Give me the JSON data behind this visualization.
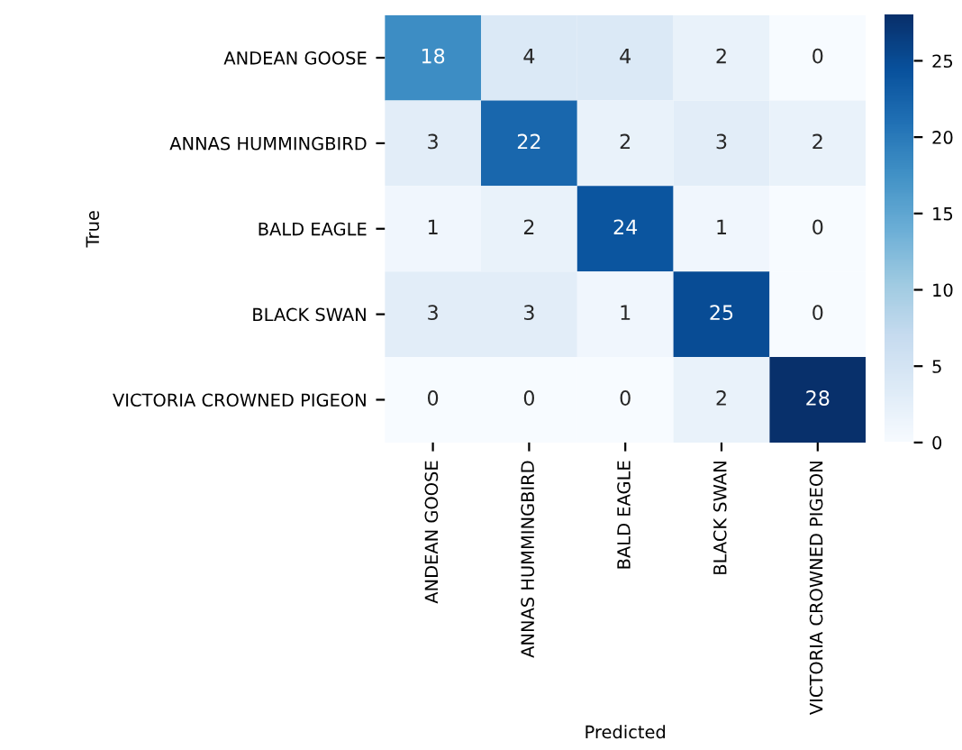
{
  "chart_data": {
    "type": "heatmap",
    "xlabel": "Predicted",
    "ylabel": "True",
    "categories": [
      "ANDEAN GOOSE",
      "ANNAS HUMMINGBIRD",
      "BALD EAGLE",
      "BLACK SWAN",
      "VICTORIA CROWNED PIGEON"
    ],
    "y_categories": [
      "ANDEAN GOOSE",
      "ANNAS HUMMINGBIRD",
      "BALD EAGLE",
      "BLACK SWAN",
      "VICTORIA CROWNED PIGEON"
    ],
    "cells": [
      [
        18,
        4,
        4,
        2,
        0
      ],
      [
        3,
        22,
        2,
        3,
        2
      ],
      [
        1,
        2,
        24,
        1,
        0
      ],
      [
        3,
        3,
        1,
        25,
        0
      ],
      [
        0,
        0,
        0,
        2,
        28
      ]
    ],
    "clim": [
      0,
      28
    ],
    "cticks": [
      0,
      5,
      10,
      15,
      20,
      25
    ],
    "data_labels": true
  }
}
